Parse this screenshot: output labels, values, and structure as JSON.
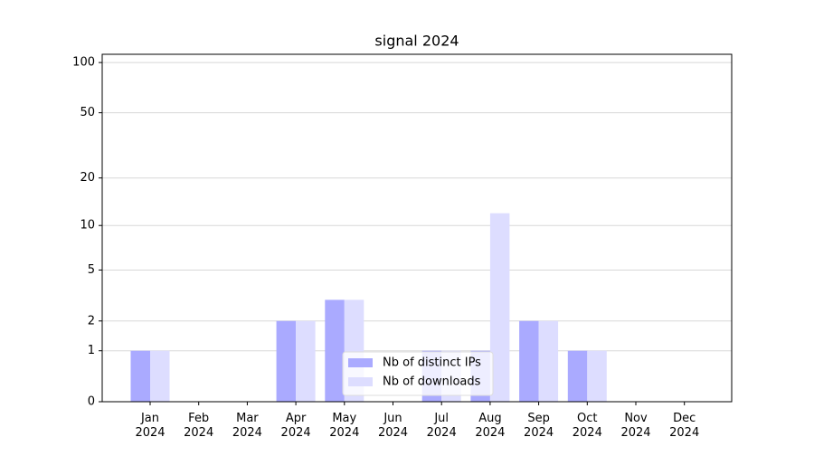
{
  "chart_data": {
    "type": "bar",
    "title": "signal 2024",
    "scale": "log1p",
    "categories": [
      "Jan\n2024",
      "Feb\n2024",
      "Mar\n2024",
      "Apr\n2024",
      "May\n2024",
      "Jun\n2024",
      "Jul\n2024",
      "Aug\n2024",
      "Sep\n2024",
      "Oct\n2024",
      "Nov\n2024",
      "Dec\n2024"
    ],
    "series": [
      {
        "name": "Nb of distinct IPs",
        "color": "#aaaaff",
        "values": [
          1,
          0,
          0,
          2,
          3,
          0,
          1,
          1,
          2,
          1,
          0,
          0
        ]
      },
      {
        "name": "Nb of downloads",
        "color": "#ddddff",
        "values": [
          1,
          0,
          0,
          2,
          3,
          0,
          1,
          12,
          2,
          1,
          0,
          0
        ]
      }
    ],
    "ylim": [
      0,
      112
    ],
    "yticks": [
      0,
      1,
      2,
      5,
      10,
      20,
      50,
      100
    ],
    "grid": true,
    "legend": "lower center"
  }
}
